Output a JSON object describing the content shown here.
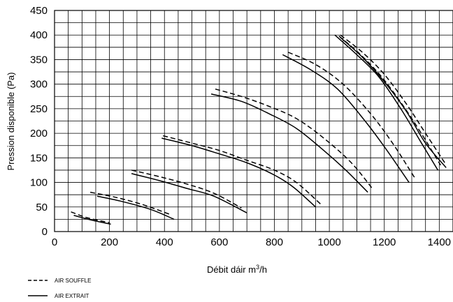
{
  "chart_data": {
    "type": "line",
    "title": "",
    "xlabel_main": "Débit dáir m",
    "xlabel_sup": "3",
    "xlabel_tail": "/h",
    "ylabel": "Pression disponible (Pa)",
    "xlim": [
      0,
      1450
    ],
    "ylim": [
      0,
      450
    ],
    "x_ticks": [
      0,
      200,
      400,
      600,
      800,
      1000,
      1200,
      1400
    ],
    "y_ticks": [
      0,
      50,
      100,
      150,
      200,
      250,
      300,
      350,
      400,
      450
    ],
    "x_grid_step": 50,
    "y_grid_step": 25,
    "grid": true,
    "legend_position": "bottom-left",
    "legend": [
      {
        "name": "AIR SOUFFLE",
        "style": "dashed"
      },
      {
        "name": "AIR EXTRAIT",
        "style": "solid"
      }
    ],
    "series": [
      {
        "name": "AIR SOUFFLE",
        "style": "dashed",
        "x": [
          60,
          120,
          200
        ],
        "y": [
          40,
          28,
          18
        ]
      },
      {
        "name": "AIR EXTRAIT",
        "style": "solid",
        "x": [
          70,
          130,
          205
        ],
        "y": [
          33,
          24,
          15
        ]
      },
      {
        "name": "AIR SOUFFLE",
        "style": "dashed",
        "x": [
          130,
          220,
          320,
          420
        ],
        "y": [
          80,
          70,
          55,
          35
        ]
      },
      {
        "name": "AIR EXTRAIT",
        "style": "solid",
        "x": [
          155,
          240,
          350,
          435
        ],
        "y": [
          72,
          62,
          45,
          25
        ]
      },
      {
        "name": "AIR SOUFFLE",
        "style": "dashed",
        "x": [
          280,
          380,
          480,
          580,
          680
        ],
        "y": [
          125,
          112,
          97,
          78,
          48
        ]
      },
      {
        "name": "AIR EXTRAIT",
        "style": "solid",
        "x": [
          280,
          380,
          480,
          580,
          700
        ],
        "y": [
          118,
          104,
          88,
          72,
          38
        ]
      },
      {
        "name": "AIR SOUFFLE",
        "style": "dashed",
        "x": [
          395,
          500,
          600,
          700,
          800,
          880,
          970
        ],
        "y": [
          195,
          180,
          165,
          145,
          125,
          100,
          55
        ]
      },
      {
        "name": "AIR EXTRAIT",
        "style": "solid",
        "x": [
          390,
          500,
          600,
          700,
          800,
          870,
          950
        ],
        "y": [
          190,
          175,
          158,
          140,
          115,
          90,
          50
        ]
      },
      {
        "name": "AIR SOUFFLE",
        "style": "dashed",
        "x": [
          585,
          680,
          780,
          880,
          980,
          1080,
          1160
        ],
        "y": [
          290,
          275,
          255,
          230,
          190,
          140,
          85
        ]
      },
      {
        "name": "AIR EXTRAIT",
        "style": "solid",
        "x": [
          570,
          680,
          780,
          880,
          980,
          1060,
          1140
        ],
        "y": [
          280,
          265,
          240,
          210,
          165,
          125,
          80
        ]
      },
      {
        "name": "AIR SOUFFLE",
        "style": "dashed",
        "x": [
          850,
          950,
          1050,
          1150,
          1230,
          1310
        ],
        "y": [
          365,
          340,
          300,
          240,
          180,
          110
        ]
      },
      {
        "name": "AIR EXTRAIT",
        "style": "solid",
        "x": [
          830,
          930,
          1030,
          1130,
          1210,
          1290
        ],
        "y": [
          360,
          330,
          290,
          225,
          165,
          100
        ]
      },
      {
        "name": "AIR SOUFFLE",
        "style": "dashed",
        "x": [
          1040,
          1120,
          1200,
          1280,
          1350,
          1420
        ],
        "y": [
          400,
          365,
          320,
          260,
          200,
          140
        ]
      },
      {
        "name": "AIR EXTRAIT",
        "style": "solid",
        "x": [
          1020,
          1100,
          1180,
          1260,
          1330,
          1395
        ],
        "y": [
          400,
          360,
          315,
          250,
          185,
          125
        ]
      },
      {
        "name": "AIR SOUFFLE",
        "style": "dashed",
        "x": [
          1035,
          1110,
          1190,
          1270,
          1340,
          1405
        ],
        "y": [
          398,
          362,
          315,
          255,
          195,
          135
        ]
      },
      {
        "name": "AIR EXTRAIT",
        "style": "solid",
        "x": [
          1040,
          1120,
          1200,
          1280,
          1350,
          1425
        ],
        "y": [
          395,
          355,
          305,
          245,
          180,
          130
        ]
      }
    ]
  }
}
